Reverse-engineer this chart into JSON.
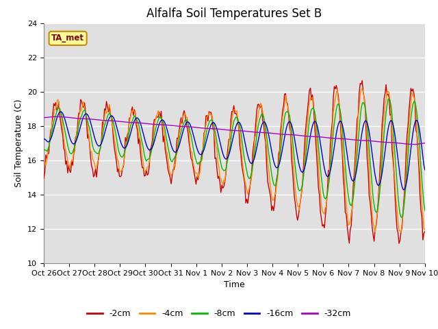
{
  "title": "Alfalfa Soil Temperatures Set B",
  "xlabel": "Time",
  "ylabel": "Soil Temperature (C)",
  "ylim": [
    10,
    24
  ],
  "yticks": [
    10,
    12,
    14,
    16,
    18,
    20,
    22,
    24
  ],
  "x_tick_labels": [
    "Oct 26",
    "Oct 27",
    "Oct 28",
    "Oct 29",
    "Oct 30",
    "Oct 31",
    "Nov 1",
    "Nov 2",
    "Nov 3",
    "Nov 4",
    "Nov 5",
    "Nov 6",
    "Nov 7",
    "Nov 8",
    "Nov 9",
    "Nov 10"
  ],
  "series_colors": {
    "-2cm": "#cc0000",
    "-4cm": "#ff8800",
    "-8cm": "#00bb00",
    "-16cm": "#0000cc",
    "-32cm": "#aa00cc"
  },
  "legend_labels": [
    "-2cm",
    "-4cm",
    "-8cm",
    "-16cm",
    "-32cm"
  ],
  "annotation_text": "TA_met",
  "annotation_color": "#880000",
  "annotation_bg": "#ffff99",
  "annotation_border": "#cc8800",
  "fig_bg_color": "#ffffff",
  "plot_bg_color": "#e0e0e0",
  "grid_color": "#ffffff",
  "title_fontsize": 12,
  "axis_label_fontsize": 9,
  "tick_fontsize": 8
}
